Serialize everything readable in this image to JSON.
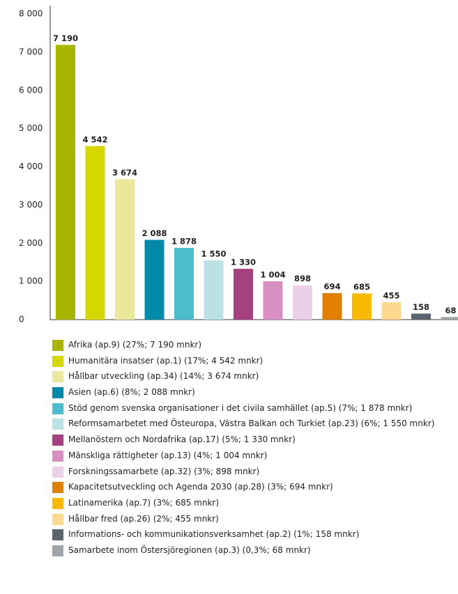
{
  "chart_data": {
    "type": "bar",
    "categories": [
      "Afrika (ap.9) (27%; 7 190 mnkr)",
      "Humanitära insatser (ap.1) (17%; 4 542 mnkr)",
      "Hållbar utveckling (ap.34) (14%; 3 674 mnkr)",
      "Asien (ap.6) (8%; 2 088 mnkr)",
      "Stöd genom svenska organisationer i det civila samhället (ap.5) (7%; 1 878 mnkr)",
      "Reformsamarbetet med Östeuropa, Västra Balkan och Turkiet (ap.23) (6%; 1 550 mnkr)",
      "Mellanöstern och Nordafrika (ap.17) (5%; 1 330 mnkr)",
      "Mänskliga rättigheter (ap.13) (4%; 1 004 mnkr)",
      "Forskningssamarbete (ap.32) (3%; 898 mnkr)",
      "Kapacitetsutveckling och Agenda 2030 (ap.28) (3%; 694 mnkr)",
      "Latinamerika (ap.7) (3%; 685 mnkr)",
      "Hållbar fred (ap.26) (2%; 455 mnkr)",
      "Informations- och kommunikationsverksamhet (ap.2) (1%; 158 mnkr)",
      "Samarbete inom Östersjöregionen (ap.3) (0,3%; 68 mnkr)"
    ],
    "values": [
      7190,
      4542,
      3674,
      2088,
      1878,
      1550,
      1330,
      1004,
      898,
      694,
      685,
      455,
      158,
      68
    ],
    "value_labels": [
      "7 190",
      "4 542",
      "3 674",
      "2 088",
      "1 878",
      "1 550",
      "1 330",
      "1 004",
      "898",
      "694",
      "685",
      "455",
      "158",
      "68"
    ],
    "colors": [
      "#a8b400",
      "#d6d700",
      "#ebe89b",
      "#0089a9",
      "#4cbdcc",
      "#bbe1e7",
      "#a6417f",
      "#d790c1",
      "#ebd1e7",
      "#e07f00",
      "#f9b900",
      "#fdd98f",
      "#5b6570",
      "#9fa5a9"
    ],
    "ylim": [
      0,
      8000
    ],
    "yticks": [
      0,
      {
        "value": 1000,
        "label": "1 000"
      },
      {
        "value": 2000,
        "label": "2 000"
      },
      {
        "value": 3000,
        "label": "3 000"
      },
      {
        "value": 4000,
        "label": "4 000"
      },
      {
        "value": 5000,
        "label": "5 000"
      },
      {
        "value": 6000,
        "label": "6 000"
      },
      {
        "value": 7000,
        "label": "7 000"
      },
      {
        "value": 8000,
        "label": "8 000"
      }
    ]
  }
}
